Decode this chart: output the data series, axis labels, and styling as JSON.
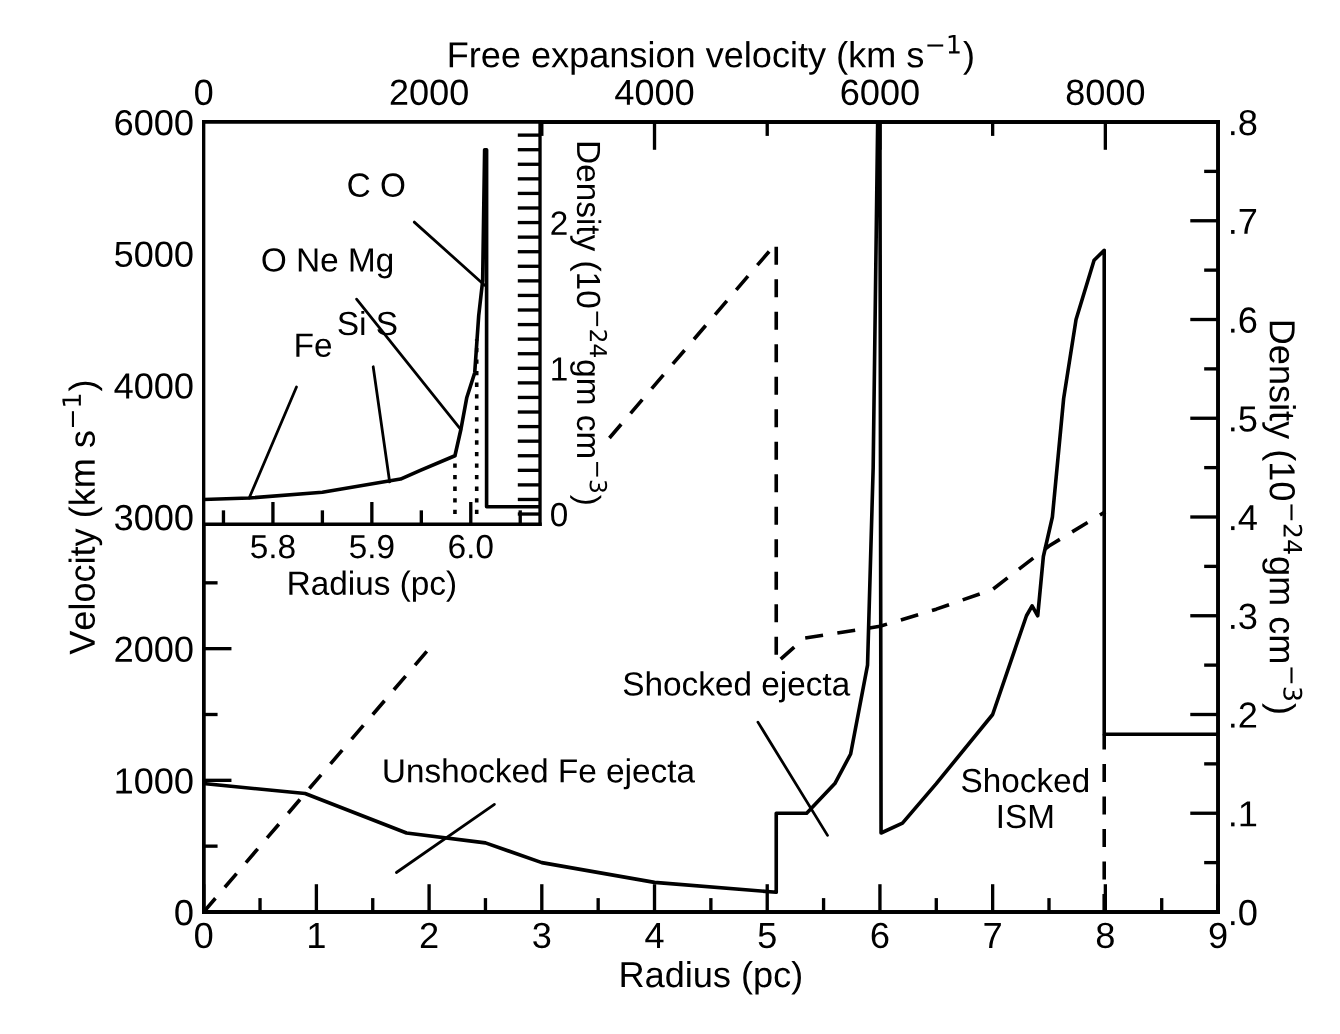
{
  "chart_data": [
    {
      "type": "line",
      "xlabel": "Radius (pc)",
      "ylabel": "Velocity (km s$^{−1}$)",
      "y2label": "Density (10$^{−24}$gm cm$^{−3}$)",
      "x2label": "Free expansion velocity (km s$^{−1}$)",
      "xlim": [
        0,
        9
      ],
      "xticks": [
        0,
        {
          "value": 0.5,
          "label": null
        },
        1,
        {
          "value": 1.5,
          "label": null
        },
        2,
        {
          "value": 2.5,
          "label": null
        },
        3,
        {
          "value": 3.5,
          "label": null
        },
        4,
        {
          "value": 4.5,
          "label": null
        },
        5,
        {
          "value": 5.5,
          "label": null
        },
        6,
        {
          "value": 6.5,
          "label": null
        },
        7,
        {
          "value": 7.5,
          "label": null
        },
        8,
        {
          "value": 8.5,
          "label": null
        },
        9
      ],
      "ylim": [
        0,
        6000
      ],
      "yticks": [
        0,
        {
          "value": 500,
          "label": null
        },
        1000,
        {
          "value": 1500,
          "label": null
        },
        2000,
        {
          "value": 2500,
          "label": null
        },
        3000,
        {
          "value": 3500,
          "label": null
        },
        4000,
        {
          "value": 4500,
          "label": null
        },
        5000,
        {
          "value": 5500,
          "label": null
        },
        6000
      ],
      "y2lim": [
        0,
        0.8
      ],
      "y2ticks": [
        {
          "value": 0,
          "label": ".0"
        },
        {
          "value": 0.05,
          "label": null
        },
        {
          "value": 0.1,
          "label": ".1"
        },
        {
          "value": 0.15,
          "label": null
        },
        {
          "value": 0.2,
          "label": ".2"
        },
        {
          "value": 0.25,
          "label": null
        },
        {
          "value": 0.3,
          "label": ".3"
        },
        {
          "value": 0.35,
          "label": null
        },
        {
          "value": 0.4,
          "label": ".4"
        },
        {
          "value": 0.45,
          "label": null
        },
        {
          "value": 0.5,
          "label": ".5"
        },
        {
          "value": 0.55,
          "label": null
        },
        {
          "value": 0.6,
          "label": ".6"
        },
        {
          "value": 0.65,
          "label": null
        },
        {
          "value": 0.7,
          "label": ".7"
        },
        {
          "value": 0.75,
          "label": null
        },
        {
          "value": 0.8,
          "label": ".8"
        }
      ],
      "x2lim": [
        0,
        9000
      ],
      "x2ticks": [
        0,
        {
          "value": 1000,
          "label": null
        },
        2000,
        {
          "value": 3000,
          "label": null
        },
        4000,
        {
          "value": 5000,
          "label": null
        },
        6000,
        {
          "value": 7000,
          "label": null
        },
        8000
      ],
      "series": [
        {
          "axis": "y",
          "line_style": "dashed",
          "color": "#000000",
          "x": [
            0,
            2,
            2.5,
            3.6,
            5.08,
            5.08,
            5.33,
            6,
            6.5,
            7,
            7.5,
            8
          ],
          "values": [
            0,
            2000,
            null,
            3600,
            5080,
            1890,
            2080,
            2170,
            2300,
            2450,
            2780,
            3040
          ]
        },
        {
          "axis": "y2",
          "line_style": "solid",
          "color": "#000000",
          "x": [
            0,
            0.9,
            1.8,
            2.5,
            3,
            4,
            5.08,
            5.08,
            5.35,
            5.6,
            5.74,
            5.89,
            5.94,
            5.98,
            6.0,
            6.01,
            6.2,
            6.5,
            7,
            7.3,
            7.35,
            7.4,
            7.45,
            7.53,
            7.63,
            7.74,
            7.9,
            7.99,
            7.99,
            9
          ],
          "values": [
            0.13,
            0.12,
            0.08,
            0.07,
            0.05,
            0.03,
            0.02,
            0.1,
            0.1,
            0.13,
            0.16,
            0.25,
            0.45,
            0.8,
            0.8,
            0.08,
            0.09,
            0.13,
            0.2,
            0.3,
            0.31,
            0.3,
            0.36,
            0.4,
            0.52,
            0.6,
            0.66,
            0.67,
            0.18,
            0.18
          ]
        },
        {
          "axis": "y2",
          "line_style": "dashed",
          "color": "#000000",
          "x": [
            7.99,
            7.99
          ],
          "values": [
            0,
            0.18
          ]
        }
      ],
      "annotations": [
        "Unshocked Fe ejecta",
        "Shocked ejecta",
        "Shocked\nISM"
      ]
    },
    {
      "type": "line",
      "xlabel": "Radius (pc)",
      "ylabel": "Density (10$^{−24}$gm cm$^{−3}$)",
      "xlim": [
        5.73,
        6.07
      ],
      "xticks": [
        {
          "value": 5.75,
          "label": null
        },
        {
          "value": 5.8,
          "label": "5.8"
        },
        {
          "value": 5.85,
          "label": null
        },
        {
          "value": 5.9,
          "label": "5.9"
        },
        {
          "value": 5.95,
          "label": null
        },
        {
          "value": 6.0,
          "label": "6.0"
        },
        {
          "value": 6.05,
          "label": null
        }
      ],
      "ylim": [
        -0.07,
        2.69
      ],
      "yticks": [
        0,
        {
          "value": 0.1,
          "label": null
        },
        {
          "value": 0.2,
          "label": null
        },
        {
          "value": 0.3,
          "label": null
        },
        {
          "value": 0.4,
          "label": null
        },
        {
          "value": 0.5,
          "label": null
        },
        {
          "value": 0.6,
          "label": null
        },
        {
          "value": 0.7,
          "label": null
        },
        {
          "value": 0.8,
          "label": null
        },
        {
          "value": 0.9,
          "label": null
        },
        1,
        {
          "value": 1.1,
          "label": null
        },
        {
          "value": 1.2,
          "label": null
        },
        {
          "value": 1.3,
          "label": null
        },
        {
          "value": 1.4,
          "label": null
        },
        {
          "value": 1.5,
          "label": null
        },
        {
          "value": 1.6,
          "label": null
        },
        {
          "value": 1.7,
          "label": null
        },
        {
          "value": 1.8,
          "label": null
        },
        {
          "value": 1.9,
          "label": null
        },
        2,
        {
          "value": 2.1,
          "label": null
        },
        {
          "value": 2.2,
          "label": null
        },
        {
          "value": 2.3,
          "label": null
        },
        {
          "value": 2.4,
          "label": null
        },
        {
          "value": 2.5,
          "label": null
        },
        {
          "value": 2.6,
          "label": null
        }
      ],
      "series": [
        {
          "line_style": "solid",
          "color": "#000000",
          "x": [
            5.73,
            5.776,
            5.85,
            5.929,
            5.949,
            5.984,
            5.99,
            5.996,
            6.004,
            6.008,
            6.012,
            6.014,
            6.016,
            6.016,
            6.07
          ],
          "values": [
            0.1,
            0.11,
            0.15,
            0.24,
            0.3,
            0.4,
            0.58,
            0.8,
            0.97,
            1.36,
            1.6,
            2.5,
            2.5,
            0.05,
            0.05
          ]
        },
        {
          "line_style": "dotted",
          "color": "#000000",
          "x": [
            5.984,
            5.984
          ],
          "values": [
            0,
            0.4
          ]
        },
        {
          "line_style": "dotted",
          "color": "#000000",
          "x": [
            6.006,
            6.006
          ],
          "values": [
            0,
            1.2
          ]
        }
      ],
      "annotations": [
        {
          "text": "C O",
          "x": 6.014,
          "y": 1.57
        },
        {
          "text": "O Ne Mg",
          "x": 5.99,
          "y": 0.58
        },
        {
          "text": "Si S",
          "x": 5.918,
          "y": 0.22
        },
        {
          "text": "Fe",
          "x": 5.776,
          "y": 0.11
        }
      ]
    }
  ]
}
